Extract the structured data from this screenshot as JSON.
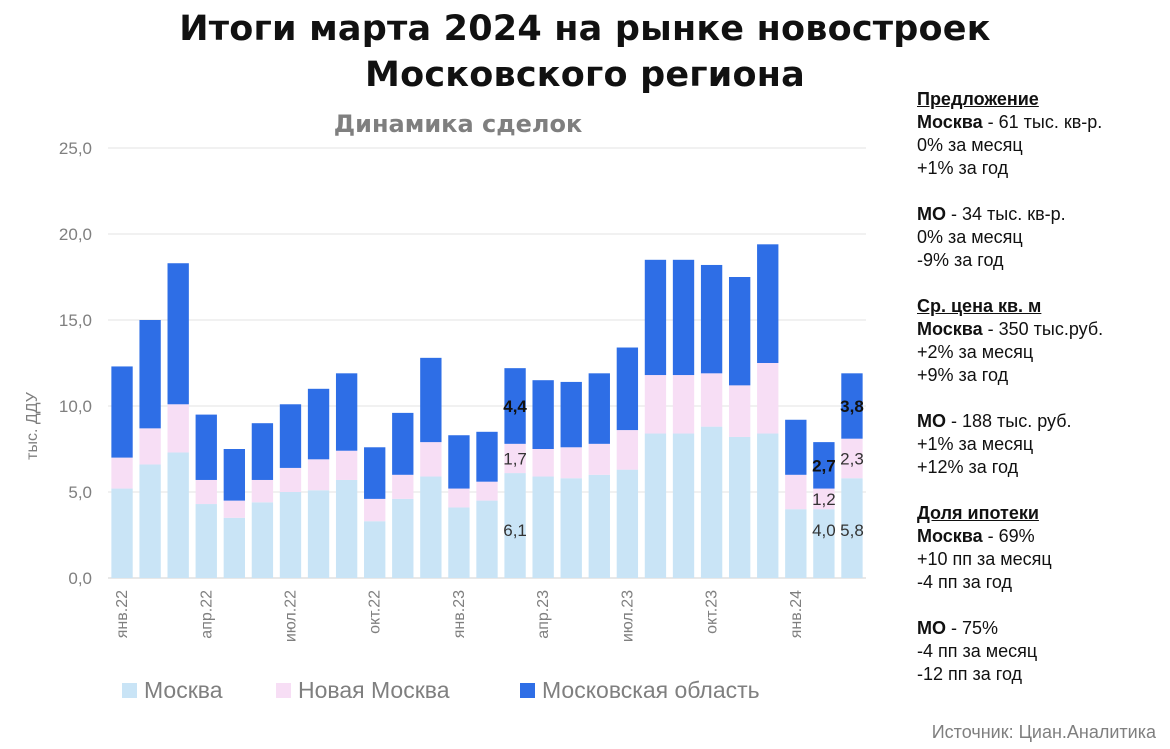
{
  "header": {
    "title_line1": "Итоги марта 2024 на рынке новостроек",
    "title_line2": "Московского региона"
  },
  "chart_data": {
    "type": "bar",
    "stacked": true,
    "title": "Динамика сделок",
    "ylabel": "тыс. ДДУ",
    "ylim": [
      0,
      25
    ],
    "yticks": [
      "0,0",
      "5,0",
      "10,0",
      "15,0",
      "20,0",
      "25,0"
    ],
    "ytick_values": [
      0,
      5,
      10,
      15,
      20,
      25
    ],
    "categories": [
      "янв.22",
      "фев.22",
      "мар.22",
      "апр.22",
      "май.22",
      "июн.22",
      "июл.22",
      "авг.22",
      "сен.22",
      "окт.22",
      "ноя.22",
      "дек.22",
      "янв.23",
      "фев.23",
      "мар.23",
      "апр.23",
      "май.23",
      "июн.23",
      "июл.23",
      "авг.23",
      "сен.23",
      "окт.23",
      "ноя.23",
      "дек.23",
      "янв.24",
      "фев.24",
      "мар.24"
    ],
    "xtick_labels": [
      {
        "index": 0,
        "label": "янв.22"
      },
      {
        "index": 3,
        "label": "апр.22"
      },
      {
        "index": 6,
        "label": "июл.22"
      },
      {
        "index": 9,
        "label": "окт.22"
      },
      {
        "index": 12,
        "label": "янв.23"
      },
      {
        "index": 15,
        "label": "апр.23"
      },
      {
        "index": 18,
        "label": "июл.23"
      },
      {
        "index": 21,
        "label": "окт.23"
      },
      {
        "index": 24,
        "label": "янв.24"
      }
    ],
    "series": [
      {
        "name": "Москва",
        "color": "#c9e4f6",
        "values": [
          5.2,
          6.6,
          7.3,
          4.3,
          3.5,
          4.4,
          5.0,
          5.1,
          5.7,
          3.3,
          4.6,
          5.9,
          4.1,
          4.5,
          6.1,
          5.9,
          5.8,
          6.0,
          6.3,
          8.4,
          8.4,
          8.8,
          8.2,
          8.4,
          4.0,
          4.0,
          5.8
        ]
      },
      {
        "name": "Новая Москва",
        "color": "#f7def5",
        "values": [
          1.8,
          2.1,
          2.8,
          1.4,
          1.0,
          1.3,
          1.4,
          1.8,
          1.7,
          1.3,
          1.4,
          2.0,
          1.1,
          1.1,
          1.7,
          1.6,
          1.8,
          1.8,
          2.3,
          3.4,
          3.4,
          3.1,
          3.0,
          4.1,
          2.0,
          1.2,
          2.3
        ]
      },
      {
        "name": "Московская область",
        "color": "#2e6ee6",
        "values": [
          5.3,
          6.3,
          8.2,
          3.8,
          3.0,
          3.3,
          3.7,
          4.1,
          4.5,
          3.0,
          3.6,
          4.9,
          3.1,
          2.9,
          4.4,
          4.0,
          3.8,
          4.1,
          4.8,
          6.7,
          6.7,
          6.3,
          6.3,
          6.9,
          3.2,
          2.7,
          3.8
        ]
      }
    ],
    "data_labels": [
      {
        "index": 14,
        "series": 0,
        "text": "6,1"
      },
      {
        "index": 14,
        "series": 1,
        "text": "1,7"
      },
      {
        "index": 14,
        "series": 2,
        "text": "4,4"
      },
      {
        "index": 25,
        "series": 0,
        "text": "4,0"
      },
      {
        "index": 25,
        "series": 1,
        "text": "1,2"
      },
      {
        "index": 25,
        "series": 2,
        "text": "2,7"
      },
      {
        "index": 26,
        "series": 0,
        "text": "5,8"
      },
      {
        "index": 26,
        "series": 1,
        "text": "2,3"
      },
      {
        "index": 26,
        "series": 2,
        "text": "3,8"
      }
    ],
    "legend_position": "bottom",
    "grid": true
  },
  "panel": {
    "sections": [
      {
        "header": "Предложение",
        "lines": [
          {
            "bold": "Москва",
            "rest": " - 61 тыс. кв-р."
          },
          {
            "bold": "",
            "rest": "0% за месяц"
          },
          {
            "bold": "",
            "rest": "+1% за год"
          }
        ]
      },
      {
        "header": "",
        "lines": [
          {
            "bold": "МО",
            "rest": " - 34 тыс. кв-р."
          },
          {
            "bold": "",
            "rest": "0% за месяц"
          },
          {
            "bold": "",
            "rest": "-9% за год"
          }
        ]
      },
      {
        "header": "Ср. цена кв. м",
        "lines": [
          {
            "bold": "Москва",
            "rest": " - 350 тыс.руб."
          },
          {
            "bold": "",
            "rest": "+2% за месяц"
          },
          {
            "bold": "",
            "rest": "+9% за год"
          }
        ]
      },
      {
        "header": "",
        "lines": [
          {
            "bold": "МО",
            "rest": " - 188 тыс. руб."
          },
          {
            "bold": "",
            "rest": "+1% за месяц"
          },
          {
            "bold": "",
            "rest": "+12% за год"
          }
        ]
      },
      {
        "header": "Доля ипотеки",
        "lines": [
          {
            "bold": "Москва",
            "rest": " - 69%"
          },
          {
            "bold": "",
            "rest": "+10 пп за месяц"
          },
          {
            "bold": "",
            "rest": "-4 пп за год"
          }
        ]
      },
      {
        "header": "",
        "lines": [
          {
            "bold": "МО",
            "rest": " - 75%"
          },
          {
            "bold": "",
            "rest": "-4 пп за месяц"
          },
          {
            "bold": "",
            "rest": "-12 пп за год"
          }
        ]
      }
    ]
  },
  "source": "Источник: Циан.Аналитика"
}
